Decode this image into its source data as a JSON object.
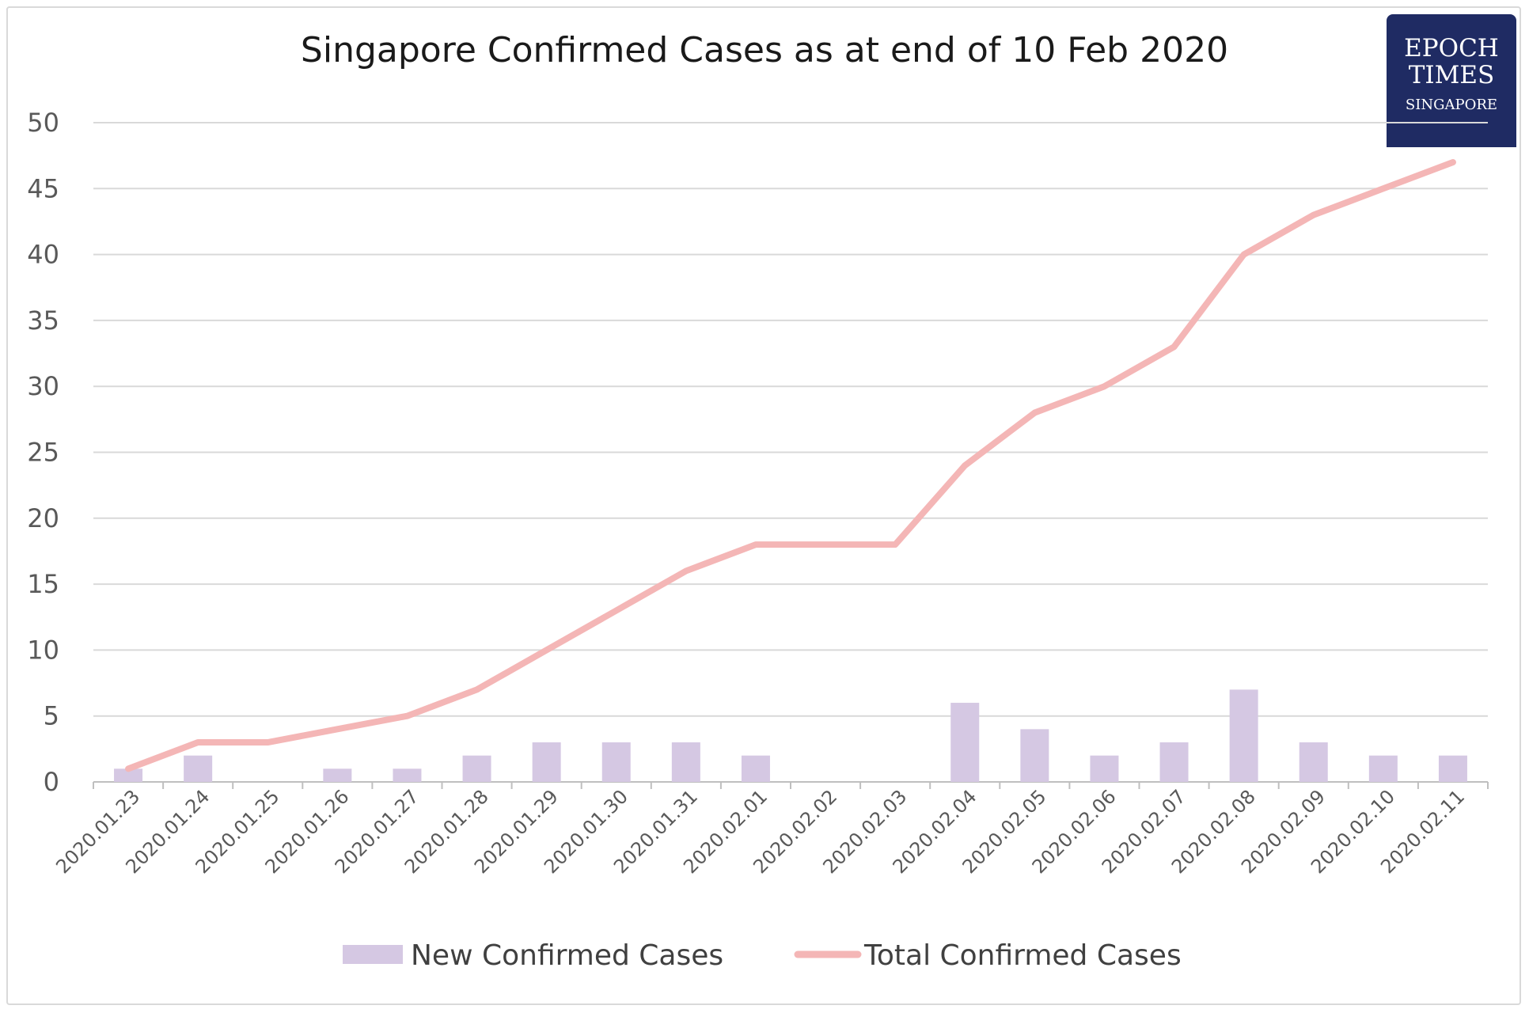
{
  "chart_data": {
    "type": "bar",
    "title": "Singapore Confirmed Cases as at end of 10 Feb 2020",
    "xlabel": "",
    "ylabel": "",
    "ylim": [
      0,
      50
    ],
    "yticks": [
      0,
      5,
      10,
      15,
      20,
      25,
      30,
      35,
      40,
      45,
      50
    ],
    "grid": true,
    "legend_position": "bottom",
    "categories": [
      "2020.01.23",
      "2020.01.24",
      "2020.01.25",
      "2020.01.26",
      "2020.01.27",
      "2020.01.28",
      "2020.01.29",
      "2020.01.30",
      "2020.01.31",
      "2020.02.01",
      "2020.02.02",
      "2020.02.03",
      "2020.02.04",
      "2020.02.05",
      "2020.02.06",
      "2020.02.07",
      "2020.02.08",
      "2020.02.09",
      "2020.02.10",
      "2020.02.11"
    ],
    "series": [
      {
        "name": "New Confirmed Cases",
        "type": "bar",
        "color": "#d5c8e3",
        "values": [
          1,
          2,
          0,
          1,
          1,
          2,
          3,
          3,
          3,
          2,
          0,
          0,
          6,
          4,
          2,
          3,
          7,
          3,
          2,
          2
        ]
      },
      {
        "name": "Total Confirmed Cases",
        "type": "line",
        "color": "#f4b6b6",
        "values": [
          1,
          3,
          3,
          4,
          5,
          7,
          10,
          13,
          16,
          18,
          18,
          18,
          24,
          28,
          30,
          33,
          40,
          43,
          45,
          47
        ]
      }
    ]
  },
  "logo": {
    "line1": "EPOCH",
    "line2": "TIMES",
    "line3": "SINGAPORE",
    "background": "#1f2b63"
  }
}
